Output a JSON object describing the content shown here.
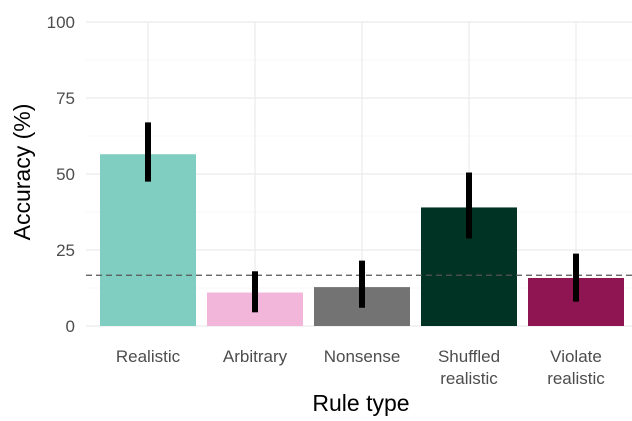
{
  "chart_data": {
    "type": "bar",
    "title": "",
    "xlabel": "Rule type",
    "ylabel": "Accuracy (%)",
    "ylim": [
      0,
      100
    ],
    "yticks": [
      0,
      25,
      50,
      75,
      100
    ],
    "grid": true,
    "legend": "none",
    "categories": [
      {
        "lines": [
          "Realistic"
        ]
      },
      {
        "lines": [
          "Arbitrary"
        ]
      },
      {
        "lines": [
          "Nonsense"
        ]
      },
      {
        "lines": [
          "Shuffled",
          "realistic"
        ]
      },
      {
        "lines": [
          "Violate",
          "realistic"
        ]
      }
    ],
    "values": [
      56.5,
      11,
      12.8,
      39,
      15.8
    ],
    "error_low": [
      47.5,
      4.5,
      6,
      28.8,
      8
    ],
    "error_high": [
      67,
      18,
      21.5,
      50.5,
      23.8
    ],
    "colors": [
      "#80cdc1",
      "#f1b6da",
      "#737373",
      "#003324",
      "#8e1452"
    ],
    "reference_line": 16.7
  }
}
